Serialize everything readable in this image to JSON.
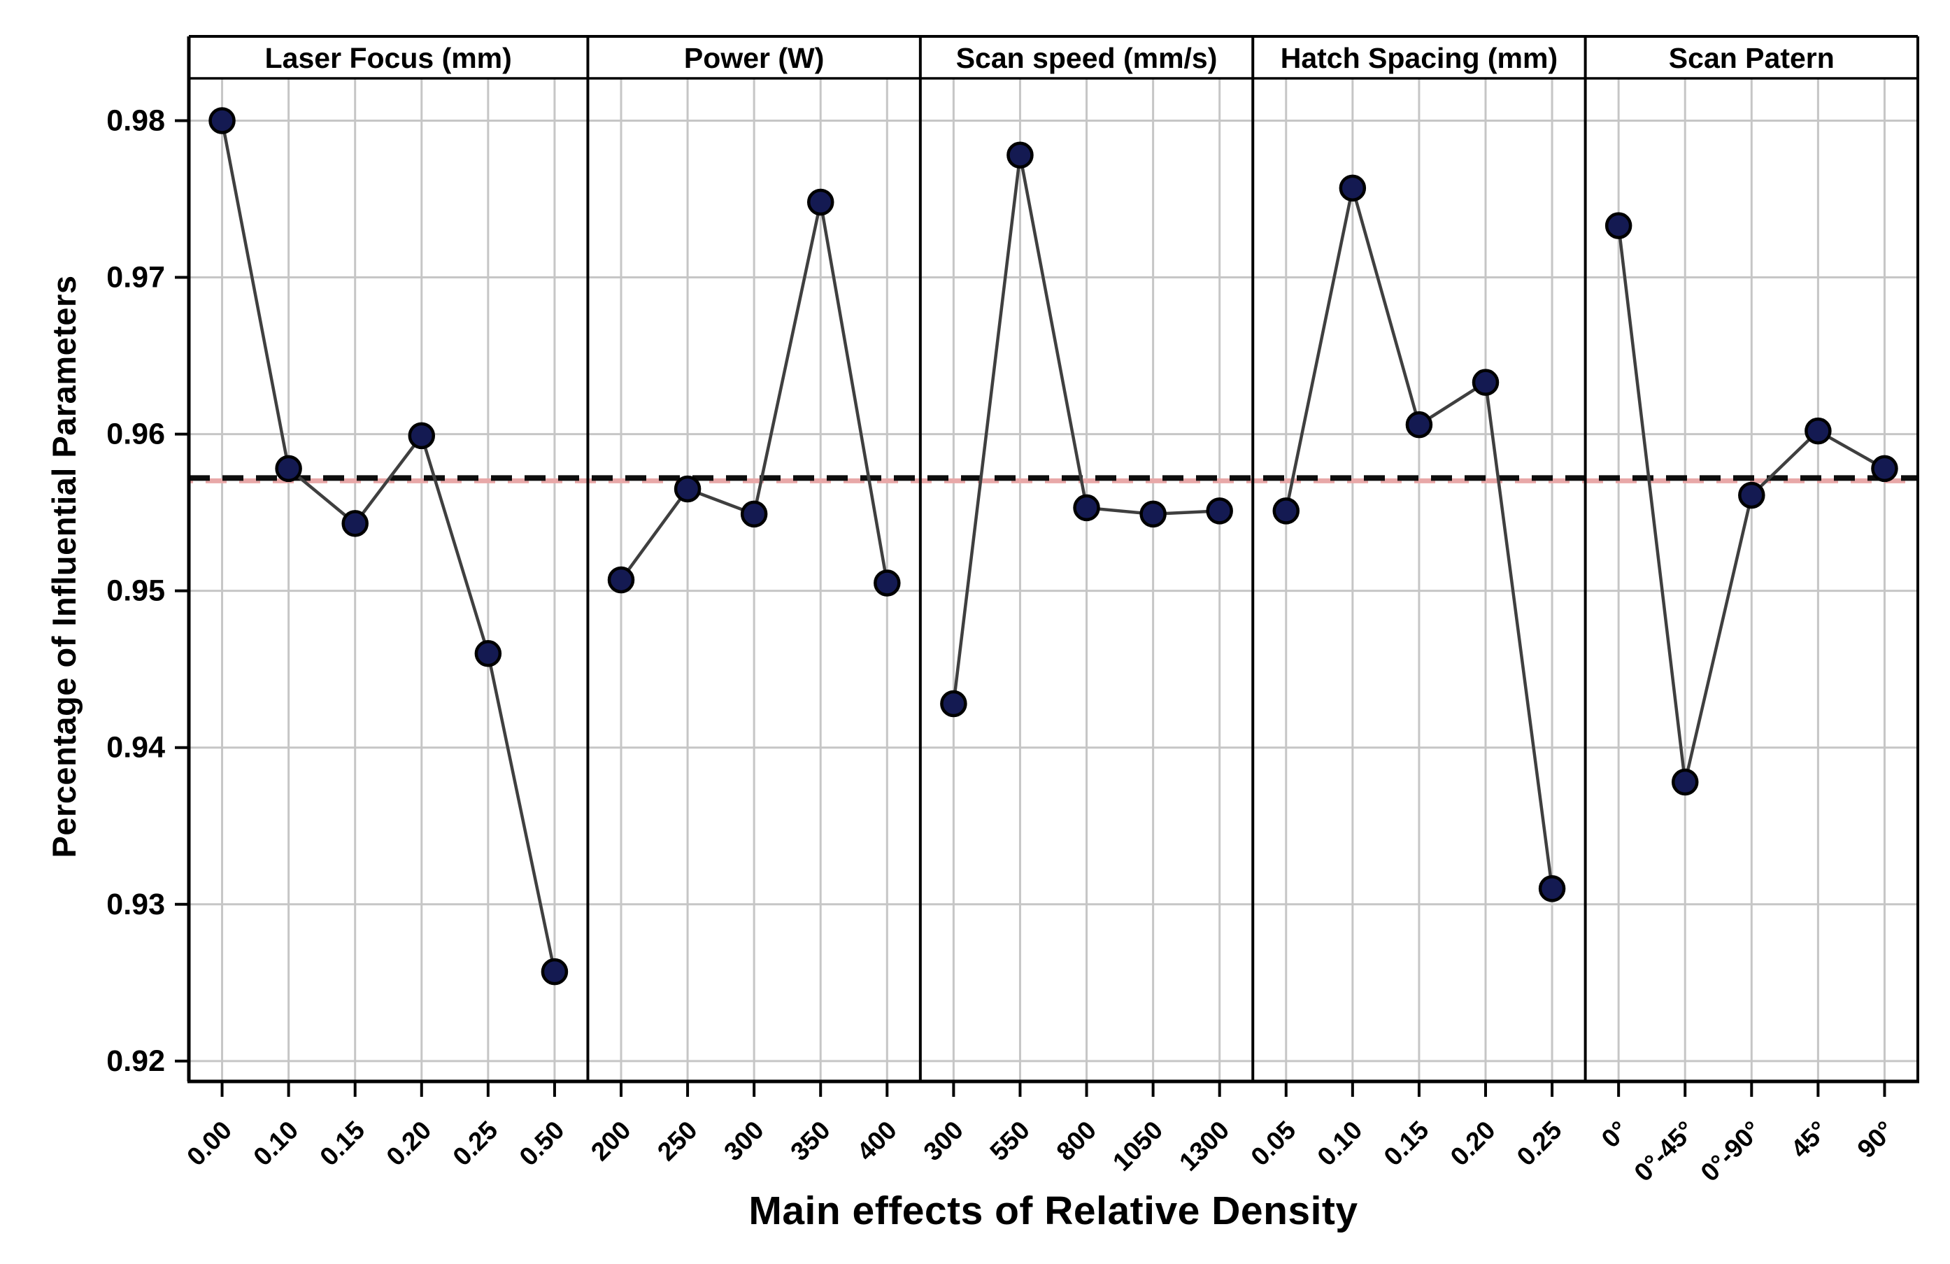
{
  "chart_data": {
    "type": "line",
    "subtype": "main-effects-panel-plot",
    "title": "",
    "xlabel": "Main effects of Relative Density",
    "ylabel": "Percentage of Influential Parameters",
    "ylim": [
      0.9187,
      0.9827
    ],
    "yticks": [
      "0.98",
      "0.97",
      "0.96",
      "0.95",
      "0.94",
      "0.93",
      "0.92"
    ],
    "grid": true,
    "legend": "none",
    "reference_line": 0.9572,
    "panels": [
      {
        "label": "Laser Focus (mm)",
        "categories": [
          "0.00",
          "0.10",
          "0.15",
          "0.20",
          "0.25",
          "0.50"
        ],
        "values": [
          0.98,
          0.9578,
          0.9543,
          0.9599,
          0.946,
          0.9257
        ]
      },
      {
        "label": "Power (W)",
        "categories": [
          "200",
          "250",
          "300",
          "350",
          "400"
        ],
        "values": [
          0.9507,
          0.9565,
          0.9549,
          0.9748,
          0.9505
        ]
      },
      {
        "label": "Scan speed (mm/s)",
        "categories": [
          "300",
          "550",
          "800",
          "1050",
          "1300"
        ],
        "values": [
          0.9428,
          0.9778,
          0.9553,
          0.9549,
          0.9551
        ]
      },
      {
        "label": "Hatch Spacing (mm)",
        "categories": [
          "0.05",
          "0.10",
          "0.15",
          "0.20",
          "0.25"
        ],
        "values": [
          0.9551,
          0.9757,
          0.9606,
          0.9633,
          0.931
        ]
      },
      {
        "label": "Scan Patern",
        "categories": [
          "0°",
          "0°-45°",
          "0°-90°",
          "45°",
          "90°"
        ],
        "values": [
          0.9733,
          0.9378,
          0.9561,
          0.9602,
          0.9578
        ]
      }
    ],
    "colors": {
      "marker_fill": "#141a52",
      "marker_stroke": "#000000",
      "series_line": "#3f3f3f",
      "grid": "#c6c6c6",
      "reference_black": "#0d0d0d",
      "reference_red": "#e8a8a8",
      "border": "#000000",
      "background": "#ffffff"
    }
  }
}
